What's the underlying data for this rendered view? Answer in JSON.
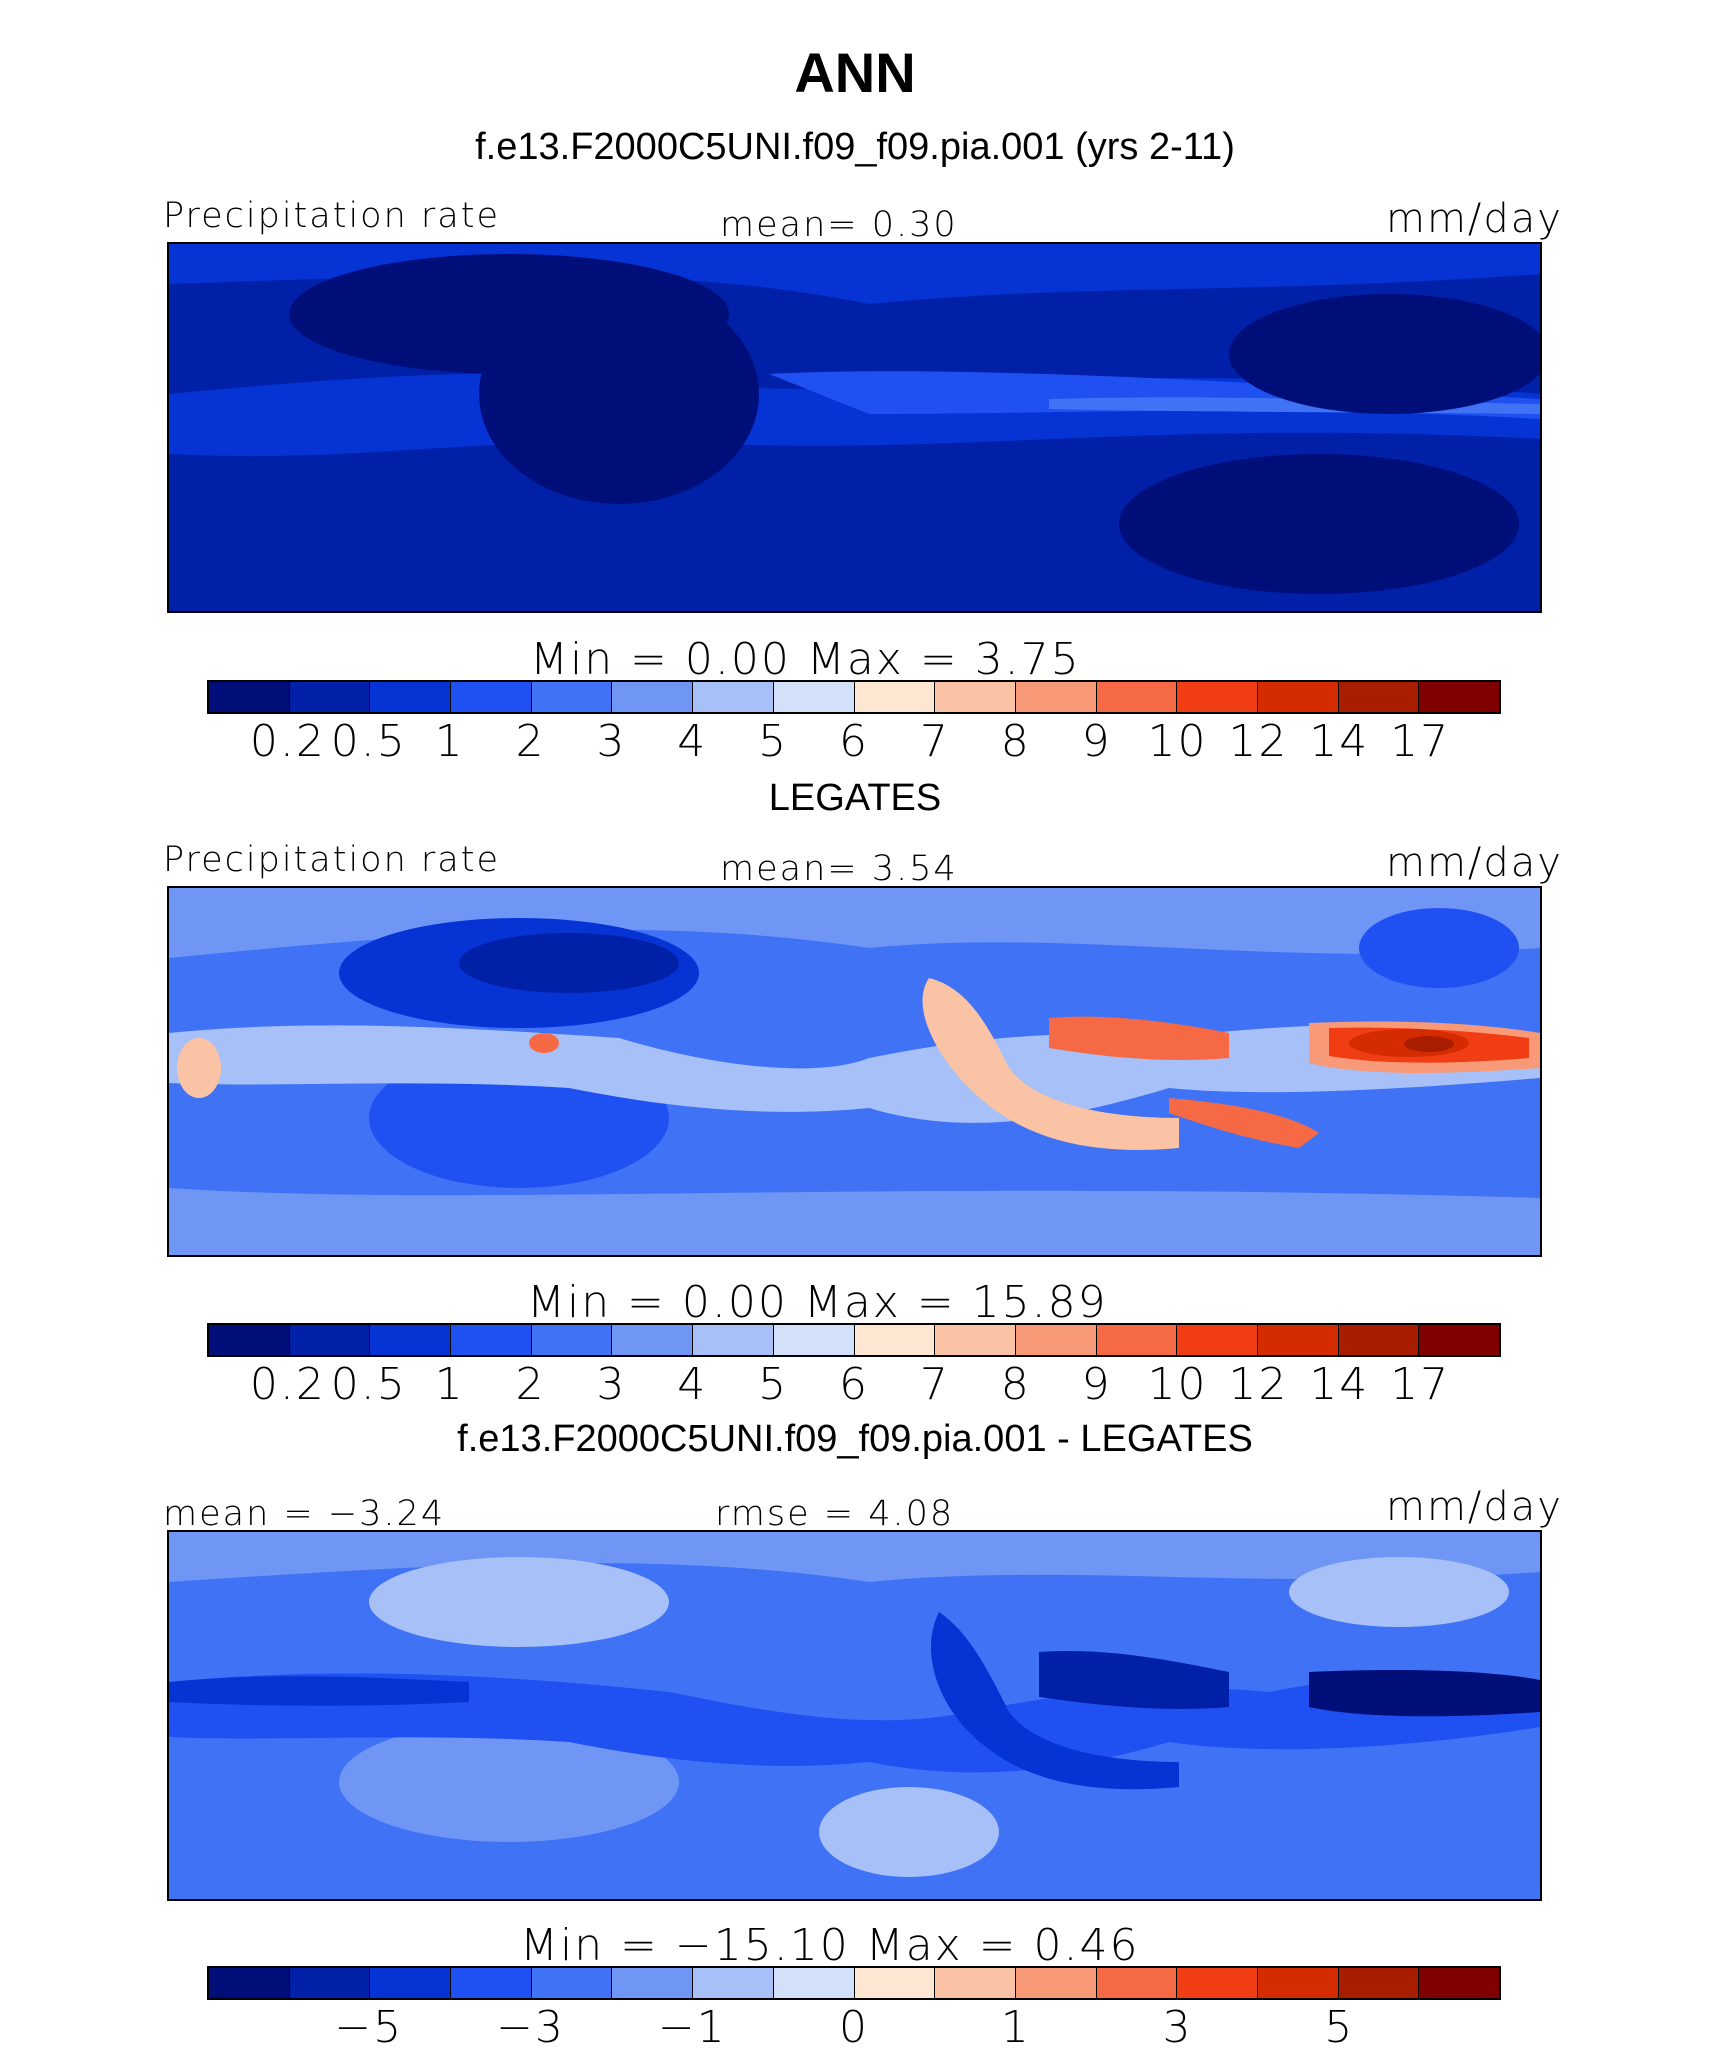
{
  "title": "ANN",
  "panels": [
    {
      "subtitle": "f.e13.F2000C5UNI.f09_f09.pia.001 (yrs 2-11)",
      "left_label": "Precipitation rate",
      "center_label": "mean=    0.30",
      "units": "mm/day",
      "minmax": "Min  =    0.00  Max  =    3.75",
      "colorbar": {
        "colors": [
          "#000e7a",
          "#0020a8",
          "#0533d4",
          "#1f50f2",
          "#3f72f5",
          "#7096f5",
          "#a7c0f7",
          "#d3e0fa",
          "#fde6d2",
          "#fbc3a6",
          "#f89a78",
          "#f56a45",
          "#f03d14",
          "#d42b00",
          "#a81c00",
          "#800000"
        ],
        "tick_labels": [
          "0.2",
          "0.5",
          "1",
          "2",
          "3",
          "4",
          "5",
          "6",
          "7",
          "8",
          "9",
          "10",
          "12",
          "14",
          "17"
        ]
      }
    },
    {
      "subtitle": "LEGATES",
      "left_label": "Precipitation rate",
      "center_label": "mean=    3.54",
      "units": "mm/day",
      "minmax": "Min  =    0.00  Max  =   15.89",
      "colorbar": {
        "colors": [
          "#000e7a",
          "#0020a8",
          "#0533d4",
          "#1f50f2",
          "#3f72f5",
          "#7096f5",
          "#a7c0f7",
          "#d3e0fa",
          "#fde6d2",
          "#fbc3a6",
          "#f89a78",
          "#f56a45",
          "#f03d14",
          "#d42b00",
          "#a81c00",
          "#800000"
        ],
        "tick_labels": [
          "0.2",
          "0.5",
          "1",
          "2",
          "3",
          "4",
          "5",
          "6",
          "7",
          "8",
          "9",
          "10",
          "12",
          "14",
          "17"
        ]
      }
    },
    {
      "subtitle": "f.e13.F2000C5UNI.f09_f09.pia.001 - LEGATES",
      "left_label": "mean  =   −3.24",
      "center_label": "rmse  =    4.08",
      "units": "mm/day",
      "minmax": "Min  = −15.10  Max  =    0.46",
      "colorbar": {
        "colors": [
          "#000e7a",
          "#0020a8",
          "#0533d4",
          "#1f50f2",
          "#3f72f5",
          "#7096f5",
          "#a7c0f7",
          "#d3e0fa",
          "#fde6d2",
          "#fbc3a6",
          "#f89a78",
          "#f56a45",
          "#f03d14",
          "#d42b00",
          "#a81c00",
          "#800000"
        ],
        "tick_labels": [
          "−5",
          "−3",
          "−1",
          "0",
          "1",
          "3",
          "5"
        ]
      }
    }
  ],
  "chart_data": {
    "type": "heatmap",
    "title": "ANN",
    "panels": [
      {
        "name": "f.e13.F2000C5UNI.f09_f09.pia.001 (yrs 2-11)",
        "variable": "Precipitation rate",
        "units": "mm/day",
        "mean": 0.3,
        "min": 0.0,
        "max": 3.75,
        "contour_levels": [
          0.2,
          0.5,
          1,
          2,
          3,
          4,
          5,
          6,
          7,
          8,
          9,
          10,
          12,
          14,
          17
        ]
      },
      {
        "name": "LEGATES",
        "variable": "Precipitation rate",
        "units": "mm/day",
        "mean": 3.54,
        "min": 0.0,
        "max": 15.89,
        "contour_levels": [
          0.2,
          0.5,
          1,
          2,
          3,
          4,
          5,
          6,
          7,
          8,
          9,
          10,
          12,
          14,
          17
        ]
      },
      {
        "name": "f.e13.F2000C5UNI.f09_f09.pia.001 - LEGATES",
        "units": "mm/day",
        "mean": -3.24,
        "rmse": 4.08,
        "min": -15.1,
        "max": 0.46,
        "contour_levels": [
          -5,
          -3,
          -1,
          0,
          1,
          3,
          5
        ]
      }
    ]
  }
}
